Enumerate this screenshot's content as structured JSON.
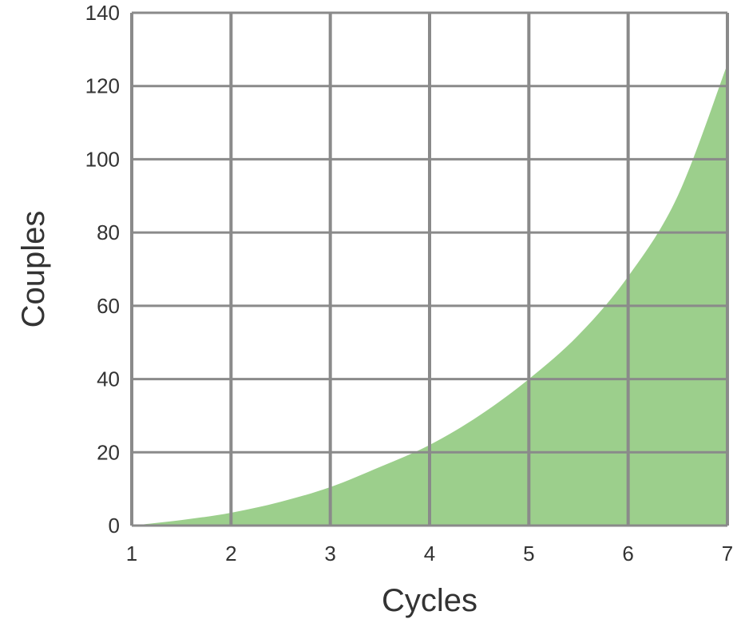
{
  "chart_data": {
    "type": "area",
    "xlabel": "Cycles",
    "ylabel": "Couples",
    "xlim": [
      1,
      7
    ],
    "ylim": [
      0,
      140
    ],
    "x_ticks": [
      "1",
      "2",
      "3",
      "4",
      "5",
      "6",
      "7"
    ],
    "y_ticks": [
      "0",
      "20",
      "40",
      "60",
      "80",
      "100",
      "120",
      "140"
    ],
    "grid": true,
    "legend": "none",
    "fill_color": "#9ccf8c",
    "grid_color": "#8a8a8a",
    "series": [
      {
        "x": [
          1,
          1.5,
          2,
          2.5,
          3,
          3.5,
          4,
          4.5,
          5,
          5.5,
          6,
          6.5,
          7
        ],
        "values": [
          0,
          1.5,
          3.5,
          6.5,
          10.5,
          16,
          22,
          30,
          40,
          52,
          68,
          90,
          126
        ]
      }
    ]
  }
}
